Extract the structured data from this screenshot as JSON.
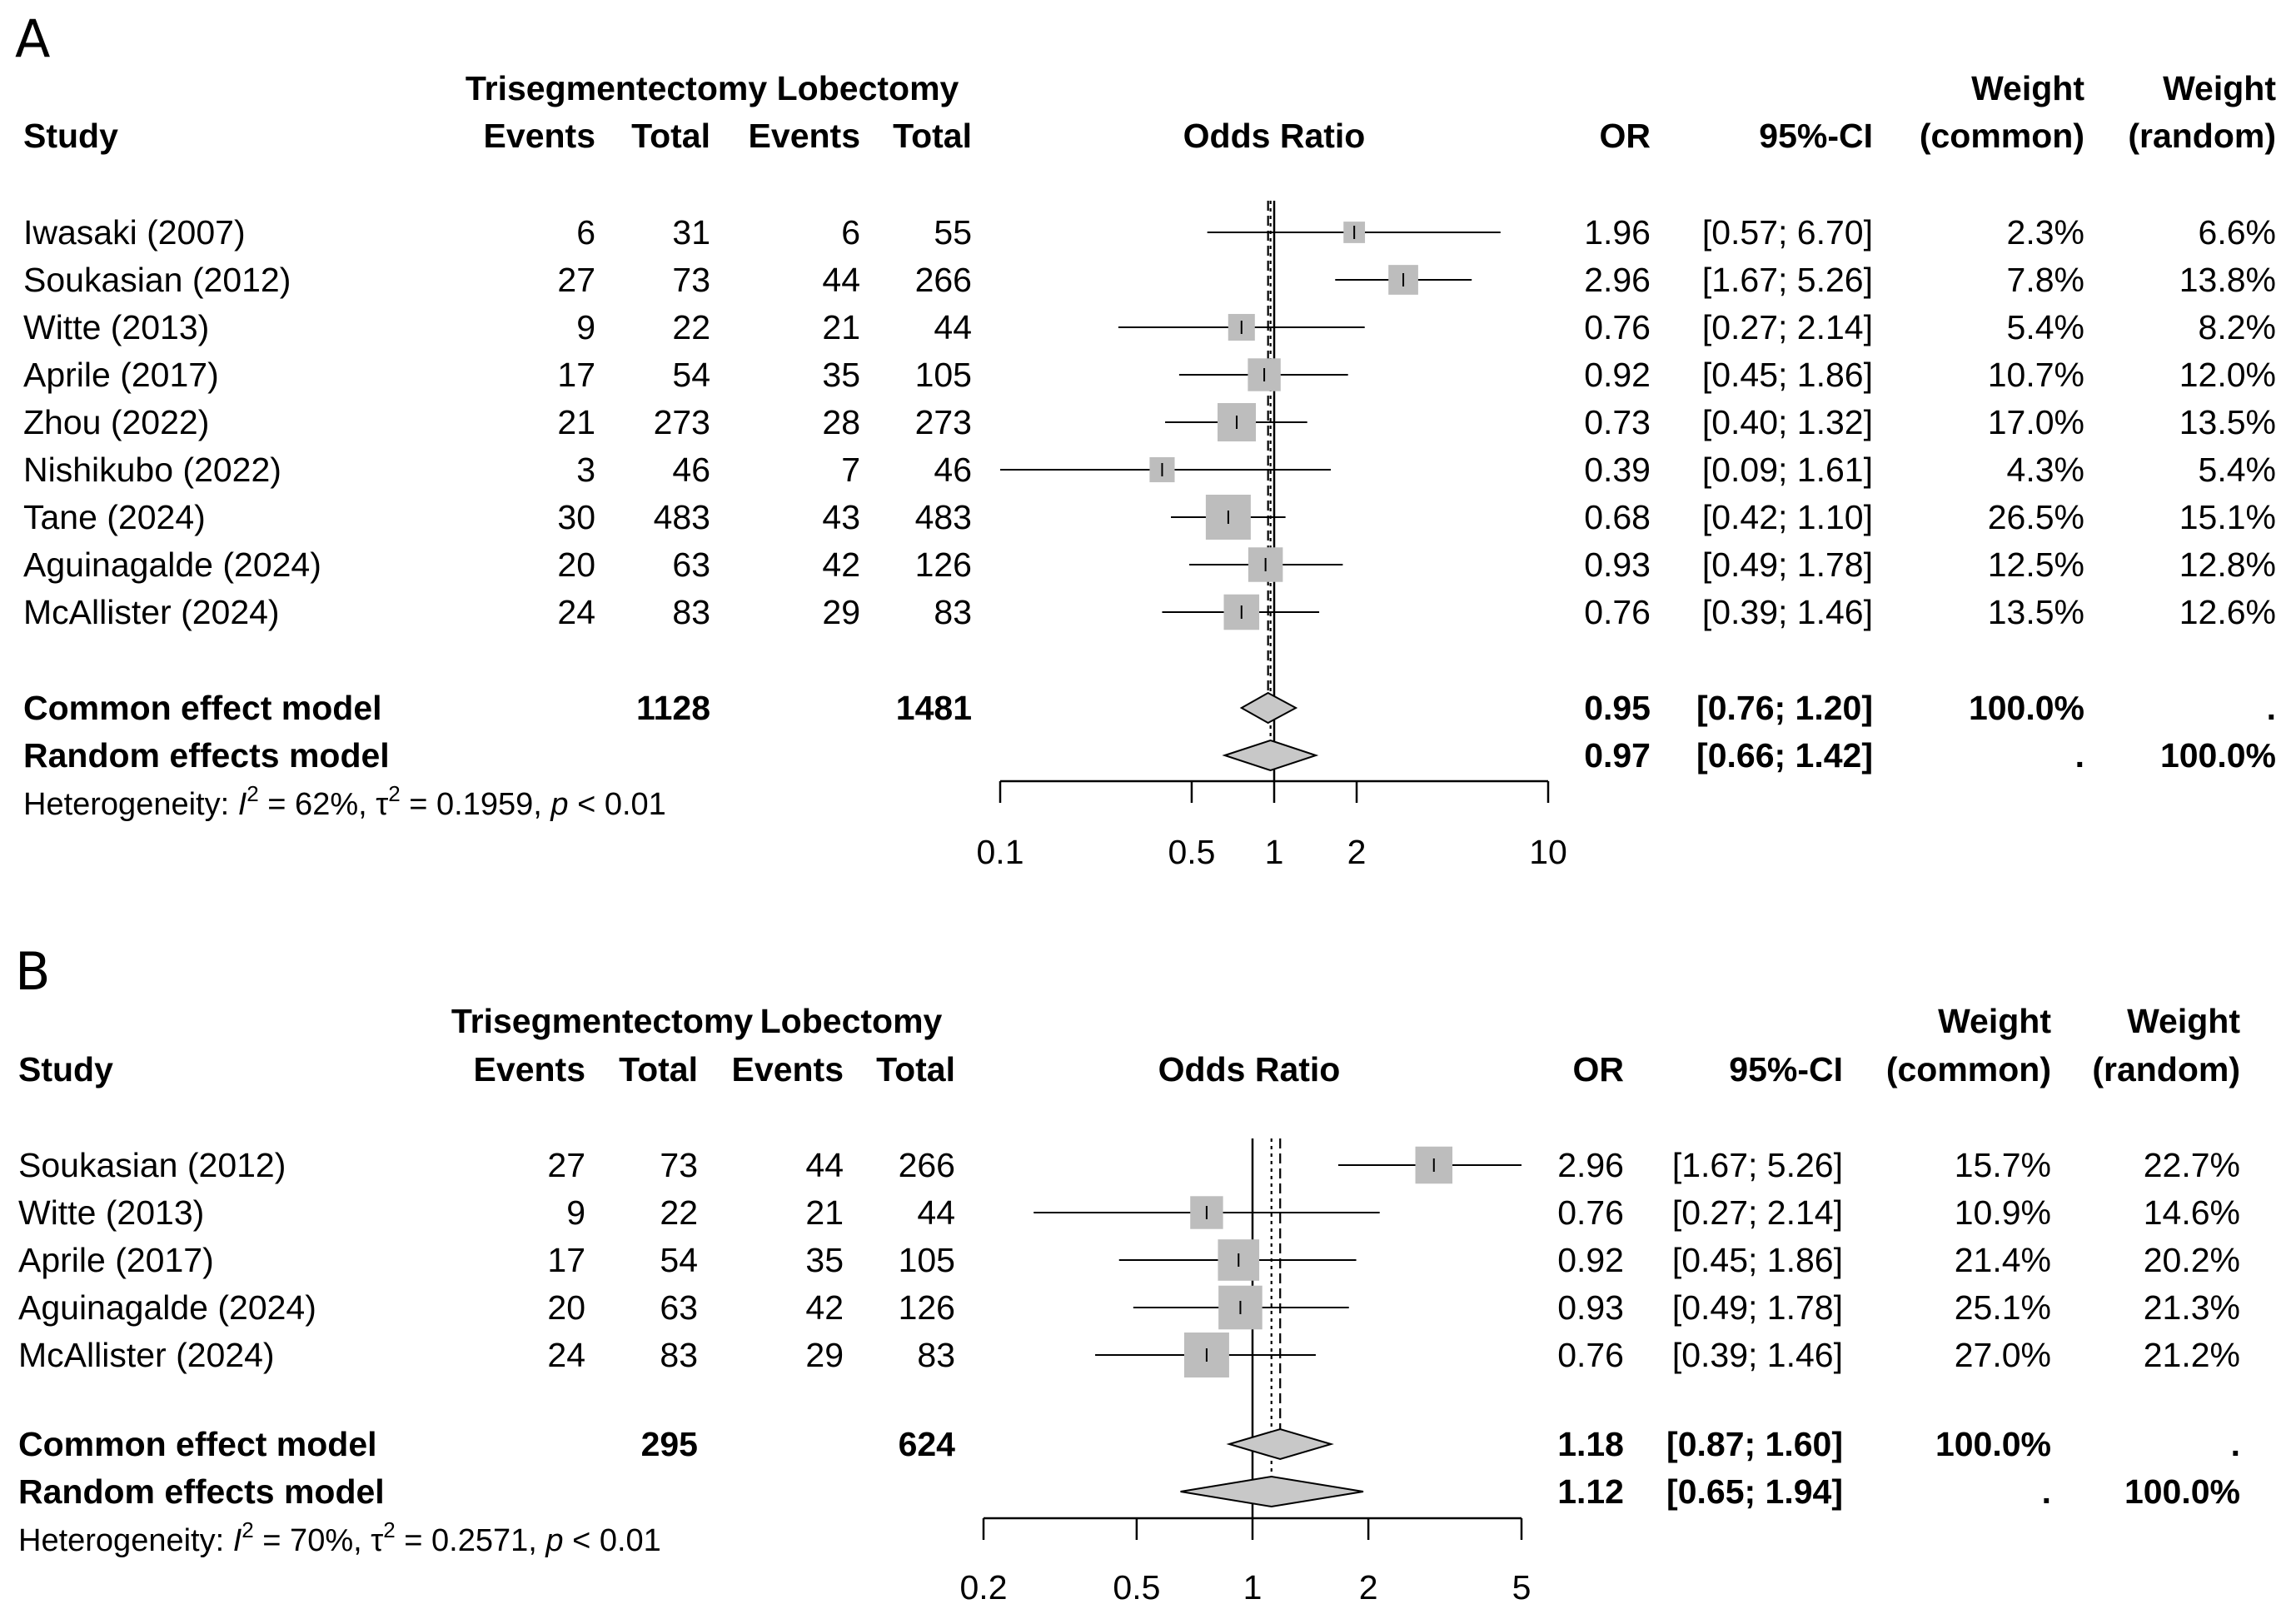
{
  "chart_data": [
    {
      "type": "forest",
      "panel_label": "A",
      "x_scale": "log",
      "xlim": [
        0.1,
        10
      ],
      "ticks": [
        "0.1",
        "0.5",
        "1",
        "2",
        "10"
      ],
      "tick_values": [
        0.1,
        0.5,
        1,
        2,
        10
      ],
      "group1_header": "Trisegmentectomy",
      "group2_header": "Lobectomy",
      "col_headers": {
        "study": "Study",
        "events1": "Events",
        "total1": "Total",
        "events2": "Events",
        "total2": "Total",
        "plot": "Odds Ratio",
        "or": "OR",
        "ci": "95%-CI",
        "weight_common_1": "Weight",
        "weight_common_2": "(common)",
        "weight_random_1": "Weight",
        "weight_random_2": "(random)"
      },
      "studies": [
        {
          "name": "Iwasaki (2007)",
          "events1": "6",
          "total1": "31",
          "events2": "6",
          "total2": "55",
          "or_text": "1.96",
          "ci_text": "[0.57; 6.70]",
          "w_common": "2.3%",
          "w_random": "6.6%",
          "or": 1.96,
          "lo": 0.57,
          "hi": 6.7,
          "weight": 2.3
        },
        {
          "name": "Soukasian (2012)",
          "events1": "27",
          "total1": "73",
          "events2": "44",
          "total2": "266",
          "or_text": "2.96",
          "ci_text": "[1.67; 5.26]",
          "w_common": "7.8%",
          "w_random": "13.8%",
          "or": 2.96,
          "lo": 1.67,
          "hi": 5.26,
          "weight": 7.8
        },
        {
          "name": "Witte (2013)",
          "events1": "9",
          "total1": "22",
          "events2": "21",
          "total2": "44",
          "or_text": "0.76",
          "ci_text": "[0.27; 2.14]",
          "w_common": "5.4%",
          "w_random": "8.2%",
          "or": 0.76,
          "lo": 0.27,
          "hi": 2.14,
          "weight": 5.4
        },
        {
          "name": "Aprile (2017)",
          "events1": "17",
          "total1": "54",
          "events2": "35",
          "total2": "105",
          "or_text": "0.92",
          "ci_text": "[0.45; 1.86]",
          "w_common": "10.7%",
          "w_random": "12.0%",
          "or": 0.92,
          "lo": 0.45,
          "hi": 1.86,
          "weight": 10.7
        },
        {
          "name": "Zhou (2022)",
          "events1": "21",
          "total1": "273",
          "events2": "28",
          "total2": "273",
          "or_text": "0.73",
          "ci_text": "[0.40; 1.32]",
          "w_common": "17.0%",
          "w_random": "13.5%",
          "or": 0.73,
          "lo": 0.4,
          "hi": 1.32,
          "weight": 17.0
        },
        {
          "name": "Nishikubo (2022)",
          "events1": "3",
          "total1": "46",
          "events2": "7",
          "total2": "46",
          "or_text": "0.39",
          "ci_text": "[0.09; 1.61]",
          "w_common": "4.3%",
          "w_random": "5.4%",
          "or": 0.39,
          "lo": 0.09,
          "hi": 1.61,
          "weight": 4.3
        },
        {
          "name": "Tane (2024)",
          "events1": "30",
          "total1": "483",
          "events2": "43",
          "total2": "483",
          "or_text": "0.68",
          "ci_text": "[0.42; 1.10]",
          "w_common": "26.5%",
          "w_random": "15.1%",
          "or": 0.68,
          "lo": 0.42,
          "hi": 1.1,
          "weight": 26.5
        },
        {
          "name": "Aguinagalde (2024)",
          "events1": "20",
          "total1": "63",
          "events2": "42",
          "total2": "126",
          "or_text": "0.93",
          "ci_text": "[0.49; 1.78]",
          "w_common": "12.5%",
          "w_random": "12.8%",
          "or": 0.93,
          "lo": 0.49,
          "hi": 1.78,
          "weight": 12.5
        },
        {
          "name": "McAllister (2024)",
          "events1": "24",
          "total1": "83",
          "events2": "29",
          "total2": "83",
          "or_text": "0.76",
          "ci_text": "[0.39; 1.46]",
          "w_common": "13.5%",
          "w_random": "12.6%",
          "or": 0.76,
          "lo": 0.39,
          "hi": 1.46,
          "weight": 13.5
        }
      ],
      "common": {
        "label": "Common effect model",
        "total1": "1128",
        "total2": "1481",
        "or_text": "0.95",
        "ci_text": "[0.76; 1.20]",
        "w_common": "100.0%",
        "w_random": ".",
        "or": 0.95,
        "lo": 0.76,
        "hi": 1.2
      },
      "random": {
        "label": "Random effects model",
        "or_text": "0.97",
        "ci_text": "[0.66; 1.42]",
        "w_common": ".",
        "w_random": "100.0%",
        "or": 0.97,
        "lo": 0.66,
        "hi": 1.42
      },
      "heterogeneity": {
        "prefix": "Heterogeneity: ",
        "i2_symbol": "I",
        "i2_value": " = 62%, ",
        "tau_symbol": "τ",
        "tau_value": " = 0.1959, ",
        "p_symbol": "p",
        "p_value": " < 0.01"
      }
    },
    {
      "type": "forest",
      "panel_label": "B",
      "x_scale": "log",
      "xlim": [
        0.2,
        5
      ],
      "ticks": [
        "0.2",
        "0.5",
        "1",
        "2",
        "5"
      ],
      "tick_values": [
        0.2,
        0.5,
        1,
        2,
        5
      ],
      "group1_header": "Trisegmentectomy",
      "group2_header": "Lobectomy",
      "col_headers": {
        "study": "Study",
        "events1": "Events",
        "total1": "Total",
        "events2": "Events",
        "total2": "Total",
        "plot": "Odds Ratio",
        "or": "OR",
        "ci": "95%-CI",
        "weight_common_1": "Weight",
        "weight_common_2": "(common)",
        "weight_random_1": "Weight",
        "weight_random_2": "(random)"
      },
      "studies": [
        {
          "name": "Soukasian (2012)",
          "events1": "27",
          "total1": "73",
          "events2": "44",
          "total2": "266",
          "or_text": "2.96",
          "ci_text": "[1.67; 5.26]",
          "w_common": "15.7%",
          "w_random": "22.7%",
          "or": 2.96,
          "lo": 1.67,
          "hi": 5.26,
          "weight": 15.7
        },
        {
          "name": "Witte (2013)",
          "events1": "9",
          "total1": "22",
          "events2": "21",
          "total2": "44",
          "or_text": "0.76",
          "ci_text": "[0.27; 2.14]",
          "w_common": "10.9%",
          "w_random": "14.6%",
          "or": 0.76,
          "lo": 0.27,
          "hi": 2.14,
          "weight": 10.9
        },
        {
          "name": "Aprile (2017)",
          "events1": "17",
          "total1": "54",
          "events2": "35",
          "total2": "105",
          "or_text": "0.92",
          "ci_text": "[0.45; 1.86]",
          "w_common": "21.4%",
          "w_random": "20.2%",
          "or": 0.92,
          "lo": 0.45,
          "hi": 1.86,
          "weight": 21.4
        },
        {
          "name": "Aguinagalde (2024)",
          "events1": "20",
          "total1": "63",
          "events2": "42",
          "total2": "126",
          "or_text": "0.93",
          "ci_text": "[0.49; 1.78]",
          "w_common": "25.1%",
          "w_random": "21.3%",
          "or": 0.93,
          "lo": 0.49,
          "hi": 1.78,
          "weight": 25.1
        },
        {
          "name": "McAllister (2024)",
          "events1": "24",
          "total1": "83",
          "events2": "29",
          "total2": "83",
          "or_text": "0.76",
          "ci_text": "[0.39; 1.46]",
          "w_common": "27.0%",
          "w_random": "21.2%",
          "or": 0.76,
          "lo": 0.39,
          "hi": 1.46,
          "weight": 27.0
        }
      ],
      "common": {
        "label": "Common effect model",
        "total1": "295",
        "total2": "624",
        "or_text": "1.18",
        "ci_text": "[0.87; 1.60]",
        "w_common": "100.0%",
        "w_random": ".",
        "or": 1.18,
        "lo": 0.87,
        "hi": 1.6
      },
      "random": {
        "label": "Random effects model",
        "or_text": "1.12",
        "ci_text": "[0.65; 1.94]",
        "w_common": ".",
        "w_random": "100.0%",
        "or": 1.12,
        "lo": 0.65,
        "hi": 1.94
      },
      "heterogeneity": {
        "prefix": "Heterogeneity: ",
        "i2_symbol": "I",
        "i2_value": " = 70%, ",
        "tau_symbol": "τ",
        "tau_value": " = 0.2571, ",
        "p_symbol": "p",
        "p_value": " < 0.01"
      }
    }
  ]
}
